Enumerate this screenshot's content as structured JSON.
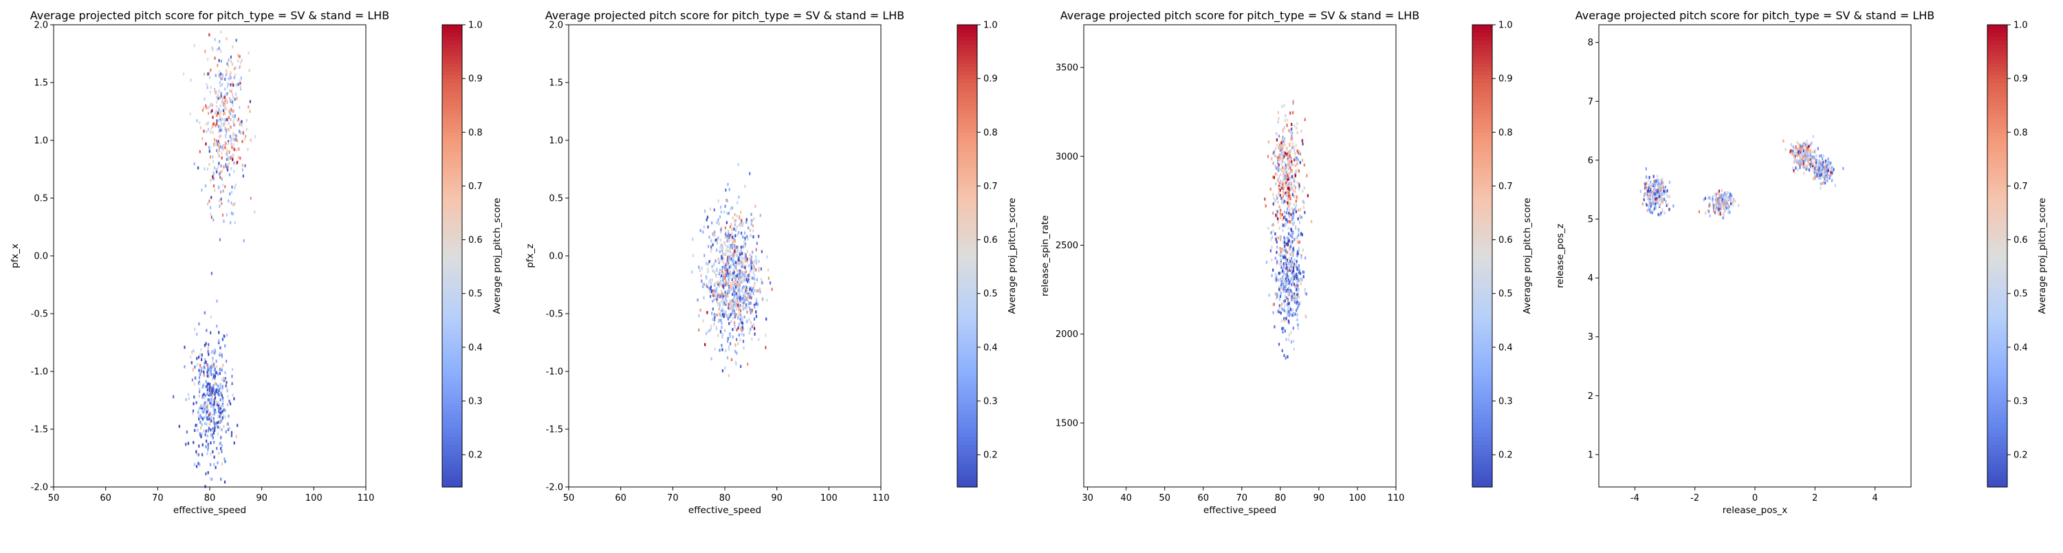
{
  "chart_data": [
    {
      "type": "heatmap",
      "title": "Average projected pitch score for pitch_type = SV & stand = LHB",
      "xlabel": "effective_speed",
      "ylabel": "pfx_x",
      "colorbar_label": "Average proj_pitch_score",
      "colormap": "coolwarm",
      "color_range": [
        0.14,
        1.0
      ],
      "colorbar_ticks": [
        0.2,
        0.3,
        0.4,
        0.5,
        0.6,
        0.7,
        0.8,
        0.9,
        1.0
      ],
      "xlim": [
        50,
        110
      ],
      "ylim": [
        -2.0,
        2.0
      ],
      "xticks": [
        50,
        60,
        70,
        80,
        90,
        100,
        110
      ],
      "yticks": [
        -2.0,
        -1.5,
        -1.0,
        -0.5,
        0.0,
        0.5,
        1.0,
        1.5,
        2.0
      ],
      "ytick_decimals": 1,
      "clusters": [
        {
          "x_center": 82.5,
          "y_center": 1.15,
          "x_spread": 2.2,
          "y_spread": 0.38,
          "count": 420,
          "mean_score": 0.55
        },
        {
          "x_center": 80.0,
          "y_center": -1.25,
          "x_spread": 1.9,
          "y_spread": 0.28,
          "count": 430,
          "mean_score": 0.32
        }
      ]
    },
    {
      "type": "heatmap",
      "title": "Average projected pitch score for pitch_type = SV & stand = LHB",
      "xlabel": "effective_speed",
      "ylabel": "pfx_z",
      "colorbar_label": "Average proj_pitch_score",
      "colormap": "coolwarm",
      "color_range": [
        0.14,
        1.0
      ],
      "colorbar_ticks": [
        0.2,
        0.3,
        0.4,
        0.5,
        0.6,
        0.7,
        0.8,
        0.9,
        1.0
      ],
      "xlim": [
        50,
        110
      ],
      "ylim": [
        -2.0,
        2.0
      ],
      "xticks": [
        50,
        60,
        70,
        80,
        90,
        100,
        110
      ],
      "yticks": [
        -2.0,
        -1.5,
        -1.0,
        -0.5,
        0.0,
        0.5,
        1.0,
        1.5,
        2.0
      ],
      "ytick_decimals": 1,
      "clusters": [
        {
          "x_center": 81.5,
          "y_center": -0.2,
          "x_spread": 2.6,
          "y_spread": 0.28,
          "count": 900,
          "mean_score": 0.45
        }
      ]
    },
    {
      "type": "heatmap",
      "title": "Average projected pitch score for pitch_type = SV & stand = LHB",
      "xlabel": "effective_speed",
      "ylabel": "release_spin_rate",
      "colorbar_label": "Average proj_pitch_score",
      "colormap": "coolwarm",
      "color_range": [
        0.14,
        1.0
      ],
      "colorbar_ticks": [
        0.2,
        0.3,
        0.4,
        0.5,
        0.6,
        0.7,
        0.8,
        0.9,
        1.0
      ],
      "xlim": [
        29,
        110
      ],
      "ylim": [
        1140,
        3740
      ],
      "xticks": [
        30,
        40,
        50,
        60,
        70,
        80,
        90,
        100,
        110
      ],
      "yticks": [
        1500,
        2000,
        2500,
        3000,
        3500
      ],
      "ytick_decimals": 0,
      "clusters": [
        {
          "x_center": 81.5,
          "y_center": 2900,
          "x_spread": 2.0,
          "y_spread": 150,
          "count": 380,
          "mean_score": 0.62
        },
        {
          "x_center": 82.0,
          "y_center": 2350,
          "x_spread": 1.9,
          "y_spread": 170,
          "count": 420,
          "mean_score": 0.35
        }
      ]
    },
    {
      "type": "heatmap",
      "title": "Average projected pitch score for pitch_type = SV & stand = LHB",
      "xlabel": "release_pos_x",
      "ylabel": "release_pos_z",
      "colorbar_label": "Average proj_pitch_score",
      "colormap": "coolwarm",
      "color_range": [
        0.14,
        1.0
      ],
      "colorbar_ticks": [
        0.2,
        0.3,
        0.4,
        0.5,
        0.6,
        0.7,
        0.8,
        0.9,
        1.0
      ],
      "xlim": [
        -5.2,
        5.2
      ],
      "ylim": [
        0.45,
        8.3
      ],
      "xticks": [
        -4,
        -2,
        0,
        2,
        4
      ],
      "yticks": [
        1,
        2,
        3,
        4,
        5,
        6,
        7,
        8
      ],
      "ytick_decimals": 0,
      "clusters": [
        {
          "x_center": -3.35,
          "y_center": 5.45,
          "x_spread": 0.2,
          "y_spread": 0.15,
          "count": 220,
          "mean_score": 0.38
        },
        {
          "x_center": -1.15,
          "y_center": 5.3,
          "x_spread": 0.22,
          "y_spread": 0.1,
          "count": 160,
          "mean_score": 0.52
        },
        {
          "x_center": 1.6,
          "y_center": 6.1,
          "x_spread": 0.2,
          "y_spread": 0.12,
          "count": 200,
          "mean_score": 0.55
        },
        {
          "x_center": 2.2,
          "y_center": 5.85,
          "x_spread": 0.2,
          "y_spread": 0.1,
          "count": 160,
          "mean_score": 0.4
        }
      ]
    }
  ]
}
